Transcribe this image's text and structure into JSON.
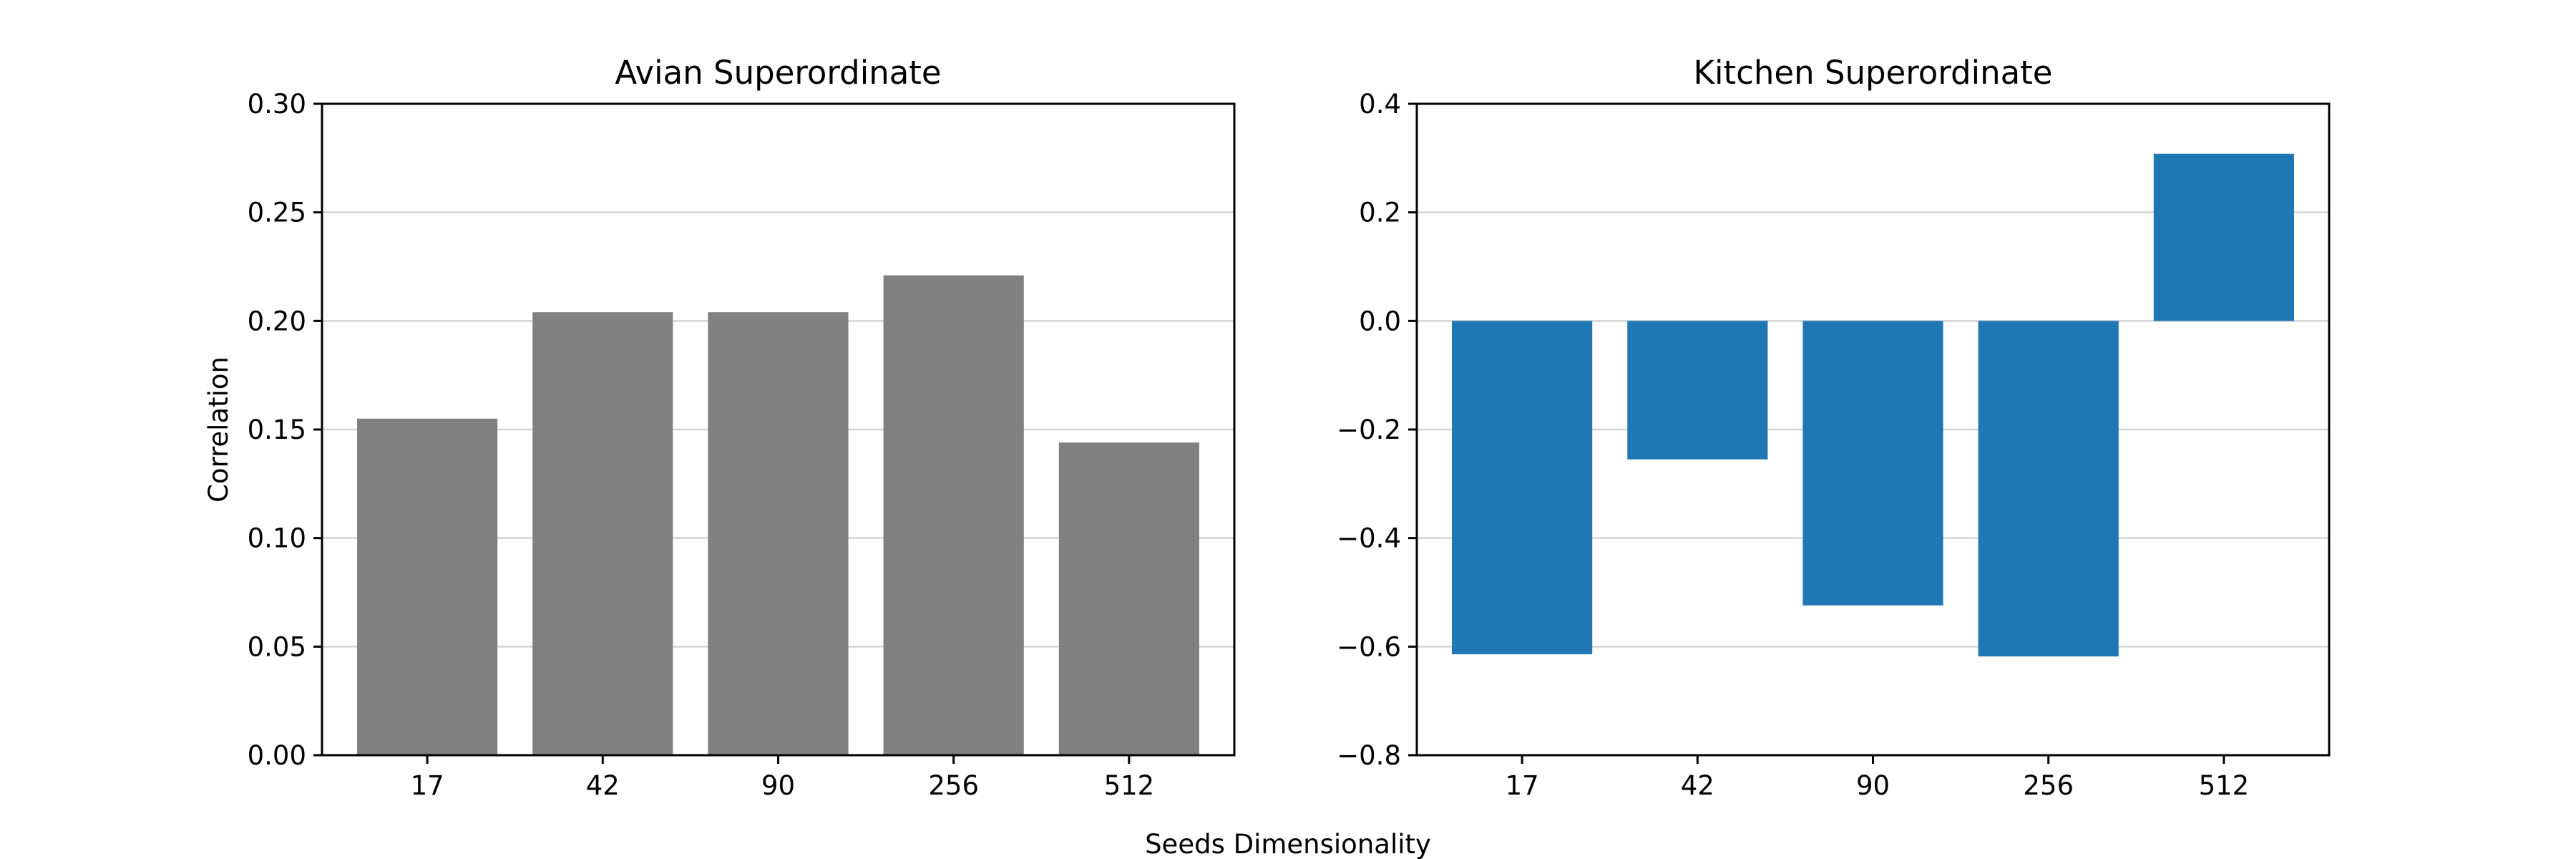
{
  "figure": {
    "xlabel": "Seeds Dimensionality"
  },
  "chart_data": [
    {
      "type": "bar",
      "title": "Avian Superordinate",
      "xlabel": "",
      "ylabel": "Correlation",
      "categories": [
        "17",
        "42",
        "90",
        "256",
        "512"
      ],
      "values": [
        0.155,
        0.204,
        0.204,
        0.221,
        0.144
      ],
      "ylim": [
        0.0,
        0.3
      ],
      "yticks": [
        0.0,
        0.05,
        0.1,
        0.15,
        0.2,
        0.25,
        0.3
      ],
      "ytick_labels": [
        "0.00",
        "0.05",
        "0.10",
        "0.15",
        "0.20",
        "0.25",
        "0.30"
      ],
      "grid": true,
      "color": "#808080"
    },
    {
      "type": "bar",
      "title": "Kitchen Superordinate",
      "xlabel": "",
      "ylabel": "",
      "categories": [
        "17",
        "42",
        "90",
        "256",
        "512"
      ],
      "values": [
        -0.614,
        -0.255,
        -0.524,
        -0.618,
        0.308
      ],
      "ylim": [
        -0.8,
        0.4
      ],
      "yticks": [
        -0.8,
        -0.6,
        -0.4,
        -0.2,
        0.0,
        0.2,
        0.4
      ],
      "ytick_labels": [
        "−0.8",
        "−0.6",
        "−0.4",
        "−0.2",
        "0.0",
        "0.2",
        "0.4"
      ],
      "grid": true,
      "color": "#1f77b4"
    }
  ]
}
